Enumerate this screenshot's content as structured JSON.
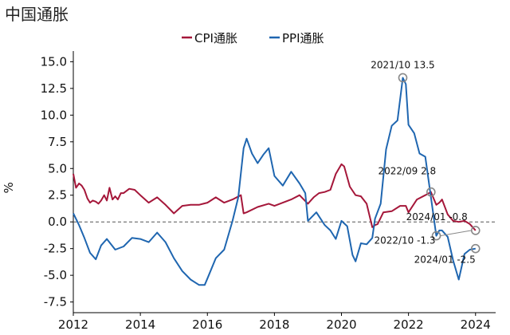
{
  "chart_data": {
    "type": "line",
    "title": "中国通胀",
    "ylabel": "%",
    "xlabel": "",
    "ylim": [
      -8.5,
      16
    ],
    "xlim": [
      2012,
      2024.6
    ],
    "y_ticks": [
      "15.0",
      "12.5",
      "10.0",
      "7.5",
      "5.0",
      "2.5",
      "0.0",
      "-2.5",
      "-5.0",
      "-7.5"
    ],
    "x_ticks": [
      "2012",
      "2014",
      "2016",
      "2018",
      "2020",
      "2022",
      "2024"
    ],
    "zero_line": "dashed",
    "grid": false,
    "legend_position": "top-center",
    "series": [
      {
        "name": "CPI通胀",
        "color": "#a5173a",
        "x": [
          2012.0,
          2012.08,
          2012.17,
          2012.25,
          2012.33,
          2012.42,
          2012.5,
          2012.58,
          2012.67,
          2012.75,
          2012.83,
          2012.92,
          2013.0,
          2013.08,
          2013.17,
          2013.25,
          2013.33,
          2013.42,
          2013.5,
          2013.67,
          2013.83,
          2014.0,
          2014.25,
          2014.5,
          2014.75,
          2015.0,
          2015.25,
          2015.5,
          2015.75,
          2016.0,
          2016.25,
          2016.5,
          2016.75,
          2017.0,
          2017.08,
          2017.17,
          2017.5,
          2017.83,
          2018.0,
          2018.25,
          2018.5,
          2018.75,
          2019.0,
          2019.17,
          2019.33,
          2019.5,
          2019.67,
          2019.83,
          2020.0,
          2020.08,
          2020.25,
          2020.42,
          2020.58,
          2020.75,
          2020.92,
          2021.0,
          2021.08,
          2021.25,
          2021.5,
          2021.75,
          2021.92,
          2022.0,
          2022.25,
          2022.5,
          2022.67,
          2022.83,
          2022.92,
          2023.0,
          2023.17,
          2023.33,
          2023.5,
          2023.67,
          2023.83,
          2024.0
        ],
        "values": [
          4.5,
          3.2,
          3.6,
          3.4,
          3.0,
          2.2,
          1.8,
          2.0,
          1.9,
          1.7,
          2.0,
          2.5,
          2.0,
          3.2,
          2.1,
          2.4,
          2.1,
          2.7,
          2.7,
          3.1,
          3.0,
          2.5,
          1.8,
          2.3,
          1.6,
          0.8,
          1.5,
          1.6,
          1.6,
          1.8,
          2.3,
          1.8,
          2.1,
          2.5,
          0.8,
          0.9,
          1.4,
          1.7,
          1.5,
          1.8,
          2.1,
          2.5,
          1.7,
          2.3,
          2.7,
          2.8,
          3.0,
          4.5,
          5.4,
          5.2,
          3.3,
          2.5,
          2.4,
          1.7,
          -0.5,
          -0.3,
          -0.2,
          0.9,
          1.0,
          1.5,
          1.5,
          0.9,
          2.1,
          2.5,
          2.8,
          1.6,
          1.8,
          2.1,
          0.7,
          0.1,
          0.0,
          0.1,
          -0.2,
          -0.8
        ]
      },
      {
        "name": "PPI通胀",
        "color": "#1f66b0",
        "x": [
          2012.0,
          2012.17,
          2012.33,
          2012.5,
          2012.67,
          2012.83,
          2013.0,
          2013.25,
          2013.5,
          2013.75,
          2014.0,
          2014.25,
          2014.5,
          2014.75,
          2015.0,
          2015.25,
          2015.5,
          2015.75,
          2015.92,
          2016.0,
          2016.25,
          2016.5,
          2016.75,
          2016.92,
          2017.08,
          2017.17,
          2017.33,
          2017.5,
          2017.67,
          2017.83,
          2018.0,
          2018.25,
          2018.5,
          2018.75,
          2018.92,
          2019.0,
          2019.25,
          2019.5,
          2019.67,
          2019.83,
          2020.0,
          2020.17,
          2020.33,
          2020.42,
          2020.58,
          2020.75,
          2020.92,
          2021.0,
          2021.17,
          2021.33,
          2021.5,
          2021.67,
          2021.83,
          2021.92,
          2022.0,
          2022.17,
          2022.33,
          2022.5,
          2022.67,
          2022.83,
          2022.92,
          2023.0,
          2023.17,
          2023.33,
          2023.5,
          2023.67,
          2023.83,
          2024.0
        ],
        "values": [
          0.8,
          -0.3,
          -1.5,
          -2.9,
          -3.5,
          -2.2,
          -1.6,
          -2.6,
          -2.3,
          -1.5,
          -1.6,
          -1.9,
          -1.0,
          -1.9,
          -3.4,
          -4.6,
          -5.4,
          -5.9,
          -5.9,
          -5.3,
          -3.4,
          -2.6,
          0.1,
          2.3,
          6.9,
          7.8,
          6.4,
          5.5,
          6.3,
          6.9,
          4.3,
          3.4,
          4.7,
          3.6,
          2.7,
          0.1,
          0.9,
          -0.3,
          -0.8,
          -1.6,
          0.1,
          -0.4,
          -3.1,
          -3.7,
          -2.0,
          -2.1,
          -1.5,
          0.3,
          1.7,
          6.8,
          9.0,
          9.5,
          13.5,
          12.9,
          9.1,
          8.3,
          6.4,
          6.1,
          2.3,
          -1.3,
          -0.8,
          -0.8,
          -1.4,
          -3.6,
          -5.4,
          -3.0,
          -2.6,
          -2.5
        ]
      }
    ],
    "annotations": [
      {
        "label": "2021/10  13.5",
        "x": 2021.83,
        "y": 13.5
      },
      {
        "label": "2022/09  2.8",
        "x": 2022.67,
        "y": 2.8
      },
      {
        "label": "2024/01  -0.8",
        "x": 2024.0,
        "y": -0.8
      },
      {
        "label": "2022/10  -1.3",
        "x": 2022.83,
        "y": -1.3
      },
      {
        "label": "2024/01  -2.5",
        "x": 2024.0,
        "y": -2.5
      }
    ]
  }
}
